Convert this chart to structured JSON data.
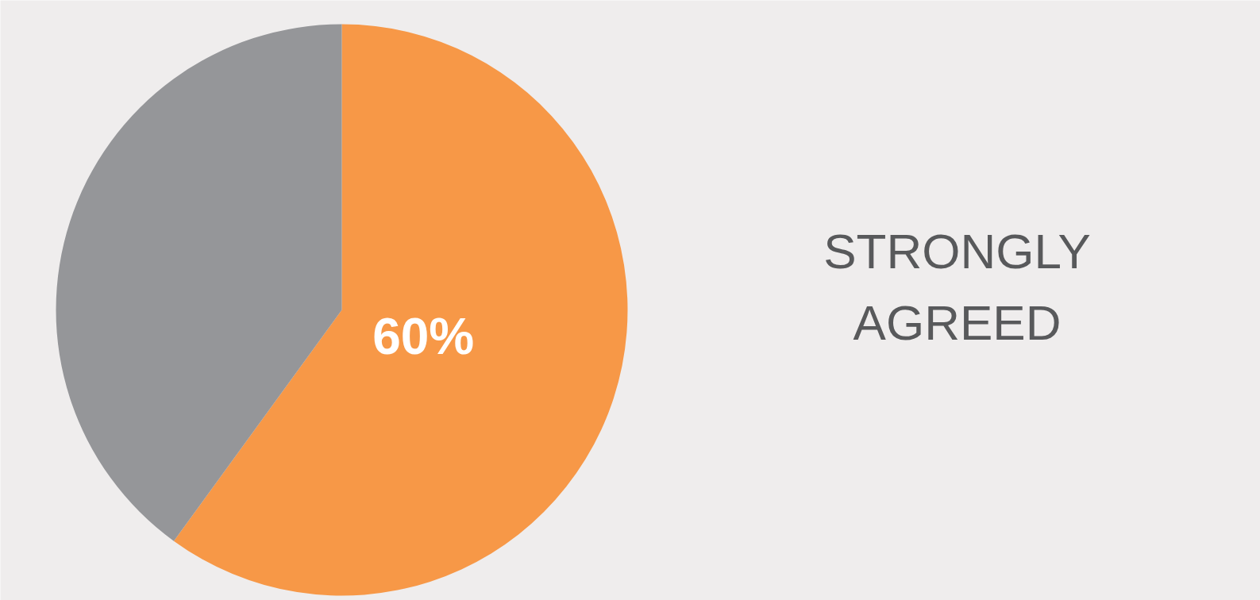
{
  "chart_data": {
    "type": "pie",
    "title": "STRONGLY AGREED",
    "categories": [
      null,
      null
    ],
    "values": [
      60,
      40
    ],
    "colors": [
      "#f79847",
      "#959699"
    ],
    "value_labels": [
      "60%",
      null
    ]
  }
}
